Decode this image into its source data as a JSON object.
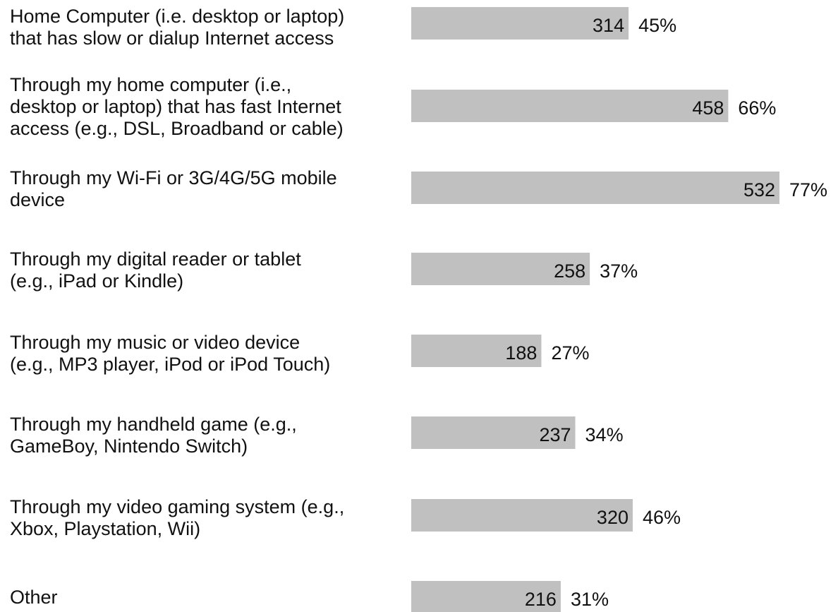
{
  "chart_data": {
    "type": "bar",
    "categories": [
      [
        "Home Computer (i.e. desktop or laptop)",
        "that has slow or dialup Internet access"
      ],
      [
        "Through my home computer (i.e.,",
        "desktop or laptop) that has fast Internet",
        "access (e.g., DSL, Broadband or cable)"
      ],
      [
        "Through my Wi-Fi or 3G/4G/5G mobile",
        "device"
      ],
      [
        "Through my digital reader or tablet",
        "(e.g., iPad or Kindle)"
      ],
      [
        "Through my music or video device",
        "(e.g., MP3 player, iPod or iPod Touch)"
      ],
      [
        "Through my handheld game (e.g.,",
        "GameBoy, Nintendo Switch)"
      ],
      [
        "Through my video gaming system (e.g.,",
        "Xbox, Playstation, Wii)"
      ],
      [
        "Other"
      ]
    ],
    "values": [
      314,
      458,
      532,
      258,
      188,
      237,
      320,
      216
    ],
    "percents": [
      45,
      66,
      77,
      37,
      27,
      34,
      46,
      31
    ],
    "percent_labels": [
      "45%",
      "66%",
      "77%",
      "37%",
      "27%",
      "34%",
      "46%",
      "31%"
    ],
    "color": "#c0c0c0"
  }
}
